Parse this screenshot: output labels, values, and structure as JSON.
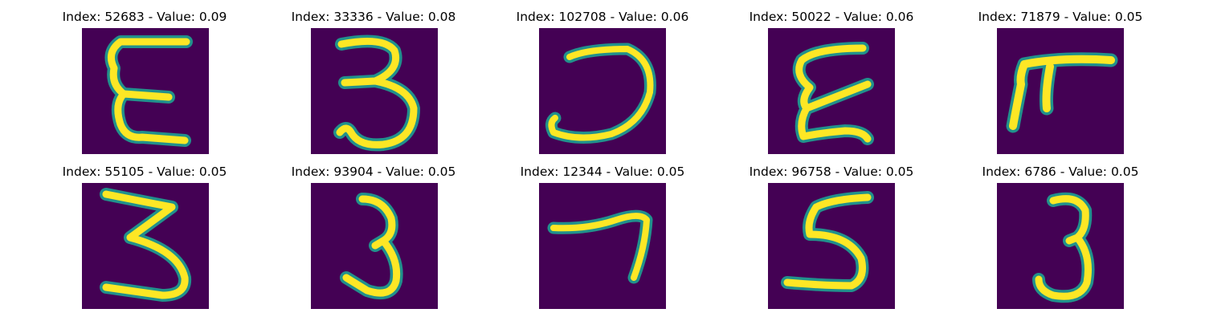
{
  "colors": {
    "background": "#440154",
    "stroke_core": "#fde725",
    "stroke_edge": "#21918c"
  },
  "panels": [
    {
      "title": "Index: 52683 - Value: 0.09",
      "digit": "E-shape"
    },
    {
      "title": "Index: 33336 - Value: 0.08",
      "digit": "3"
    },
    {
      "title": "Index: 102708 - Value: 0.06",
      "digit": "reversed C"
    },
    {
      "title": "Index: 50022 - Value: 0.06",
      "digit": "E-shape"
    },
    {
      "title": "Index: 71879 - Value: 0.05",
      "digit": "pi-shape"
    },
    {
      "title": "Index: 55105 - Value: 0.05",
      "digit": "3"
    },
    {
      "title": "Index: 93904 - Value: 0.05",
      "digit": "3"
    },
    {
      "title": "Index: 12344 - Value: 0.05",
      "digit": "7"
    },
    {
      "title": "Index: 96758 - Value: 0.05",
      "digit": "5"
    },
    {
      "title": "Index: 6786 - Value: 0.05",
      "digit": "3"
    }
  ]
}
